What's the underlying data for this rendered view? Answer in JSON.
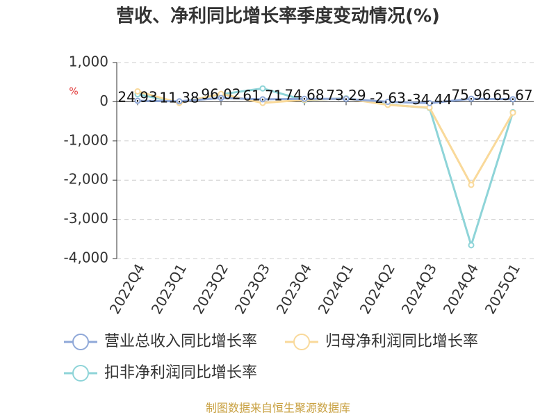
{
  "chart_data": {
    "type": "line",
    "title": "营收、净利同比增长率季度变动情况(%)",
    "y_unit": "%",
    "source": "制图数据来自恒生聚源数据库",
    "categories": [
      "2022Q4",
      "2023Q1",
      "2023Q2",
      "2023Q3",
      "2023Q4",
      "2024Q1",
      "2024Q2",
      "2024Q3",
      "2024Q4",
      "2025Q1"
    ],
    "series": [
      {
        "name": "营业总收入同比增长率",
        "color": "#8fa8d8",
        "values": [
          24.93,
          11.38,
          96.02,
          61.71,
          74.68,
          73.29,
          -2.63,
          -34.44,
          75.96,
          65.67
        ],
        "show_labels": true
      },
      {
        "name": "归母净利润同比增长率",
        "color": "#f9d99a",
        "values": [
          265,
          -30,
          200,
          -30,
          50,
          80,
          -80,
          -150,
          -2120,
          -280
        ]
      },
      {
        "name": "扣非净利润同比增长率",
        "color": "#8ed4d8",
        "values": [
          190,
          -20,
          190,
          340,
          40,
          90,
          -70,
          -160,
          -3660,
          -265
        ]
      }
    ],
    "ylim": [
      -4000,
      1000
    ],
    "yticks": [
      {
        "value": 1000,
        "label": "1,000"
      },
      0,
      {
        "value": -1000,
        "label": "-1,000"
      },
      {
        "value": -2000,
        "label": "-2,000"
      },
      {
        "value": -3000,
        "label": "-3,000"
      },
      {
        "value": -4000,
        "label": "-4,000"
      }
    ],
    "grid": true
  }
}
